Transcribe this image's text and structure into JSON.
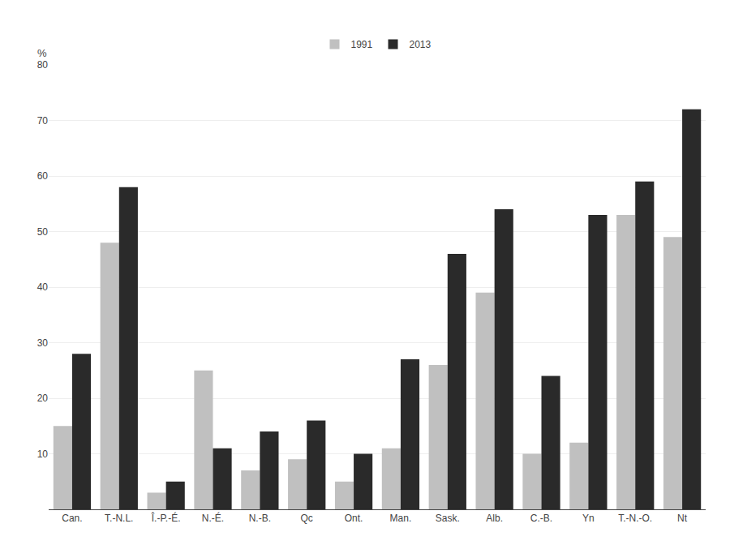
{
  "chart_data": {
    "type": "bar",
    "categories": [
      "Can.",
      "T.-N.L.",
      "Î.-P.-É.",
      "N.-É.",
      "N.-B.",
      "Qc",
      "Ont.",
      "Man.",
      "Sask.",
      "Alb.",
      "C.-B.",
      "Yn",
      "T.-N.-O.",
      "Nt"
    ],
    "series": [
      {
        "name": "1991",
        "color": "#c0c0c0",
        "values": [
          15,
          48,
          3,
          25,
          7,
          9,
          5,
          11,
          26,
          39,
          10,
          12,
          53,
          49
        ]
      },
      {
        "name": "2013",
        "color": "#2a2a2a",
        "values": [
          28,
          58,
          5,
          11,
          14,
          16,
          10,
          27,
          46,
          54,
          24,
          53,
          59,
          72
        ]
      }
    ],
    "ylabel": "%",
    "ylim": [
      0,
      80
    ],
    "yticks": [
      {
        "value": 0,
        "label": ""
      },
      10,
      20,
      30,
      40,
      50,
      60,
      70,
      80
    ],
    "grid": true,
    "legend": "top"
  }
}
